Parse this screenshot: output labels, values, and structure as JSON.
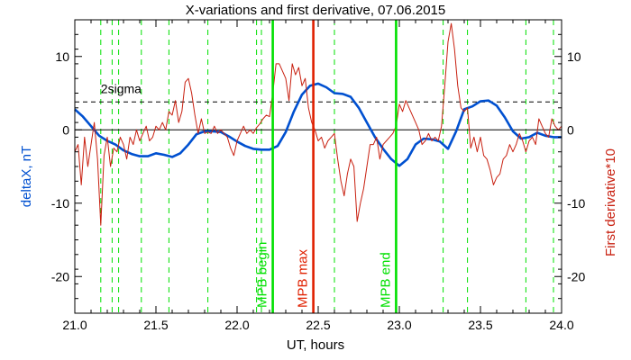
{
  "chart_data": {
    "type": "line",
    "title": "X-variations and first derivative, 07.06.2015",
    "xlabel": "UT, hours",
    "ylabel_left": "deltaX, nT",
    "ylabel_right": "First derivative*10",
    "xlim": [
      21.0,
      24.0
    ],
    "ylim": [
      -25,
      15
    ],
    "x_ticks": [
      "21.0",
      "21.5",
      "22.0",
      "22.5",
      "23.0",
      "23.5",
      "24.0"
    ],
    "y_ticks": [
      "10",
      "0",
      "-10",
      "-20"
    ],
    "y_tick_values": [
      10,
      0,
      -10,
      -20
    ],
    "x_tick_values": [
      21.0,
      21.5,
      22.0,
      22.5,
      23.0,
      23.5,
      24.0
    ],
    "grid": false,
    "colors": {
      "deltaX": "#0050d0",
      "derivative": "#c82010",
      "mpb": "#00e000",
      "mpb_max": "#e02000",
      "zero_line": "#000000",
      "sigma_line": "#000000"
    },
    "sigma_level": 3.8,
    "sigma_label": "2sigma",
    "markers": [
      {
        "label": "MPB begin",
        "x": 22.22,
        "color": "#00e000"
      },
      {
        "label": "MPB max",
        "x": 22.47,
        "color": "#e02000"
      },
      {
        "label": "MPB end",
        "x": 22.98,
        "color": "#00e000"
      }
    ],
    "dashed_lines_x": [
      21.16,
      21.23,
      21.27,
      21.41,
      21.58,
      21.82,
      22.12,
      22.15,
      22.6,
      23.27,
      23.42,
      23.78,
      23.95
    ],
    "series": [
      {
        "name": "deltaX",
        "axis": "left",
        "x": [
          21.0,
          21.05,
          21.1,
          21.15,
          21.2,
          21.25,
          21.3,
          21.35,
          21.4,
          21.45,
          21.5,
          21.55,
          21.6,
          21.65,
          21.7,
          21.75,
          21.8,
          21.85,
          21.9,
          21.95,
          22.0,
          22.05,
          22.1,
          22.15,
          22.2,
          22.25,
          22.3,
          22.35,
          22.4,
          22.45,
          22.5,
          22.55,
          22.6,
          22.65,
          22.7,
          22.75,
          22.8,
          22.85,
          22.9,
          22.95,
          23.0,
          23.05,
          23.1,
          23.15,
          23.2,
          23.25,
          23.3,
          23.35,
          23.4,
          23.45,
          23.5,
          23.55,
          23.6,
          23.65,
          23.7,
          23.75,
          23.8,
          23.85,
          23.9,
          23.95,
          24.0
        ],
        "values": [
          2.8,
          1.8,
          0.5,
          -0.8,
          -1.5,
          -2.0,
          -2.8,
          -3.3,
          -3.6,
          -3.6,
          -3.2,
          -3.4,
          -3.7,
          -3.2,
          -2.0,
          -0.6,
          -0.2,
          -0.2,
          -0.3,
          -0.9,
          -1.6,
          -2.2,
          -2.6,
          -2.7,
          -2.7,
          -2.2,
          -0.3,
          2.5,
          4.8,
          6.0,
          6.3,
          5.8,
          5.0,
          4.9,
          4.5,
          3.0,
          1.0,
          -1.0,
          -2.6,
          -4.0,
          -4.9,
          -4.0,
          -2.0,
          -1.2,
          -1.3,
          -1.6,
          -2.6,
          -0.2,
          2.8,
          3.2,
          3.9,
          4.0,
          3.3,
          1.7,
          -0.2,
          -1.2,
          -1.0,
          -0.4,
          -0.8,
          -1.0,
          -1.0
        ]
      },
      {
        "name": "First derivative*10",
        "axis": "right",
        "x": [
          21.0,
          21.02,
          21.04,
          21.06,
          21.08,
          21.1,
          21.12,
          21.14,
          21.16,
          21.18,
          21.2,
          21.22,
          21.24,
          21.26,
          21.28,
          21.3,
          21.32,
          21.34,
          21.36,
          21.38,
          21.4,
          21.42,
          21.44,
          21.46,
          21.48,
          21.5,
          21.52,
          21.54,
          21.56,
          21.58,
          21.6,
          21.62,
          21.64,
          21.66,
          21.68,
          21.7,
          21.72,
          21.74,
          21.76,
          21.78,
          21.8,
          21.82,
          21.84,
          21.86,
          21.88,
          21.9,
          21.92,
          21.94,
          21.96,
          21.98,
          22.0,
          22.02,
          22.04,
          22.06,
          22.08,
          22.1,
          22.12,
          22.14,
          22.16,
          22.18,
          22.2,
          22.22,
          22.24,
          22.26,
          22.28,
          22.3,
          22.32,
          22.34,
          22.36,
          22.38,
          22.4,
          22.42,
          22.44,
          22.46,
          22.48,
          22.5,
          22.52,
          22.54,
          22.56,
          22.58,
          22.6,
          22.62,
          22.64,
          22.66,
          22.68,
          22.7,
          22.72,
          22.74,
          22.76,
          22.78,
          22.8,
          22.82,
          22.84,
          22.86,
          22.88,
          22.9,
          22.92,
          22.94,
          22.96,
          22.98,
          23.0,
          23.02,
          23.04,
          23.06,
          23.08,
          23.1,
          23.12,
          23.14,
          23.16,
          23.18,
          23.2,
          23.22,
          23.24,
          23.26,
          23.28,
          23.3,
          23.32,
          23.34,
          23.36,
          23.38,
          23.4,
          23.42,
          23.44,
          23.46,
          23.48,
          23.5,
          23.52,
          23.54,
          23.56,
          23.58,
          23.6,
          23.62,
          23.64,
          23.66,
          23.68,
          23.7,
          23.72,
          23.74,
          23.76,
          23.78,
          23.8,
          23.82,
          23.84,
          23.86,
          23.88,
          23.9,
          23.92,
          23.94,
          23.96,
          23.98,
          24.0
        ],
        "values": [
          -3.0,
          -2.0,
          -7.5,
          -1.0,
          -5.0,
          -2.0,
          1.0,
          -4.0,
          -13.0,
          -3.5,
          -1.0,
          -5.0,
          -2.5,
          -3.0,
          -1.0,
          -2.0,
          -4.0,
          -1.0,
          -2.0,
          0.0,
          -1.5,
          -0.5,
          0.5,
          -1.5,
          -1.0,
          0.5,
          0.0,
          1.0,
          0.0,
          2.5,
          2.0,
          4.0,
          1.0,
          2.5,
          6.5,
          7.0,
          5.0,
          2.0,
          -0.5,
          1.5,
          -0.5,
          -0.3,
          -0.5,
          0.5,
          -0.5,
          0.0,
          -0.5,
          -1.0,
          -2.5,
          -3.5,
          -1.5,
          -0.5,
          0.5,
          -0.5,
          0.0,
          -0.5,
          0.3,
          0.8,
          1.5,
          2.0,
          1.8,
          5.0,
          9.0,
          9.0,
          8.0,
          7.0,
          4.0,
          9.0,
          7.5,
          8.5,
          6.0,
          7.0,
          3.0,
          1.0,
          0.0,
          -1.5,
          -1.0,
          -2.5,
          -1.5,
          -1.0,
          -0.5,
          -4.0,
          -7.0,
          -9.0,
          -6.0,
          -4.0,
          -5.0,
          -12.5,
          -10.0,
          -8.0,
          -5.0,
          -2.0,
          -2.0,
          -1.0,
          -4.0,
          -2.0,
          -1.5,
          -1.0,
          -0.5,
          0.5,
          3.5,
          2.5,
          4.0,
          3.0,
          2.0,
          1.0,
          0.0,
          -2.0,
          -1.5,
          -0.5,
          -1.5,
          -1.0,
          -1.5,
          0.5,
          6.0,
          12.0,
          14.5,
          11.0,
          6.0,
          3.0,
          2.5,
          3.0,
          -2.5,
          -1.0,
          -3.0,
          -1.0,
          -3.5,
          -4.0,
          -5.5,
          -7.5,
          -6.5,
          -6.0,
          -4.0,
          -3.5,
          -2.0,
          -3.0,
          -2.0,
          -0.5,
          -1.5,
          -3.0,
          -1.5,
          -1.0,
          -2.0,
          1.5,
          0.5,
          -0.5,
          -1.0,
          1.5,
          0.5,
          0.0,
          0.5
        ]
      }
    ]
  }
}
